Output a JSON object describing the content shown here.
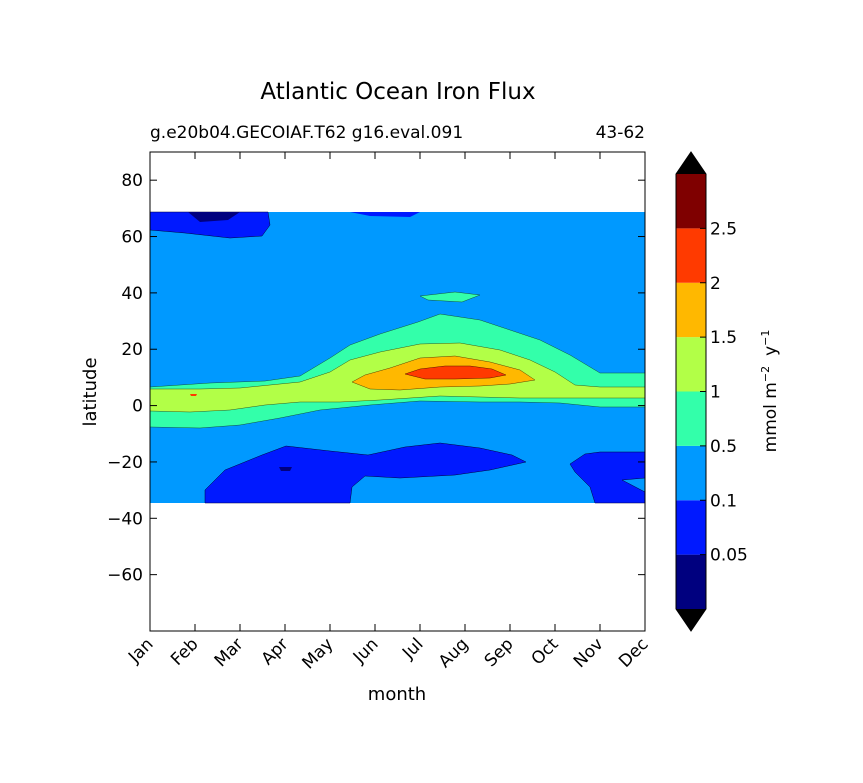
{
  "chart_data": {
    "type": "heatmap",
    "title": "Atlantic Ocean Iron Flux",
    "subtitle_left": "g.e20b04.GECOIAF.T62 g16.eval.091",
    "subtitle_right": "43-62",
    "xlabel": "month",
    "ylabel": "latitude",
    "x_ticks": [
      "Jan",
      "Feb",
      "Mar",
      "Apr",
      "May",
      "Jun",
      "Jul",
      "Aug",
      "Sep",
      "Oct",
      "Nov",
      "Dec"
    ],
    "y_ticks": [
      80,
      60,
      40,
      20,
      0,
      -20,
      -40,
      -60
    ],
    "ylim": [
      -80,
      90
    ],
    "data_lat_range": [
      -34,
      69
    ],
    "colorbar": {
      "label_main": "mmol m",
      "label_exp1": "−2",
      "label_mid": "y",
      "label_exp2": "−1",
      "levels": [
        0.0,
        0.05,
        0.1,
        0.5,
        1,
        1.5,
        2,
        2.5,
        3.0
      ],
      "tick_labels": [
        "0.05",
        "0.1",
        "0.5",
        "1",
        "1.5",
        "2",
        "2.5"
      ],
      "colors": [
        "#00007f",
        "#0019ff",
        "#0099ff",
        "#33ffaa",
        "#b2ff47",
        "#ffb800",
        "#ff3a00",
        "#7f0000"
      ],
      "extend": "both",
      "extend_color": "#000000"
    },
    "band_summary": [
      {
        "level": "0.1-0.5",
        "description": "background across -34 to 69 latitude, all months"
      },
      {
        "level": "0.05-0.1",
        "months": "Jan-Mar",
        "lat_range": [
          60,
          69
        ]
      },
      {
        "level": "0.05-0.1",
        "months": "Feb-Sep",
        "lat_range": [
          -34,
          -14
        ]
      },
      {
        "level": "0.05-0.1",
        "months": "Nov-Dec",
        "lat_range": [
          -34,
          -16
        ]
      },
      {
        "level": "0.5-1",
        "months": "Jan-Dec",
        "lat_range": [
          -8,
          26
        ]
      },
      {
        "level": "1-1.5",
        "months": "Jan-Dec",
        "lat_range": [
          -2,
          22
        ]
      },
      {
        "level": "1.5-2",
        "months": "Jun-Sep",
        "lat_range": [
          5,
          17
        ]
      },
      {
        "level": "2-2.5",
        "months": "Jul-Aug",
        "lat_range": [
          9,
          14
        ]
      }
    ]
  }
}
